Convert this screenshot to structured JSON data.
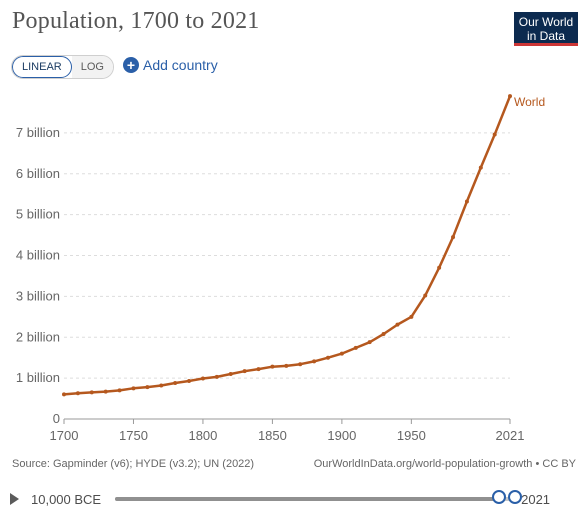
{
  "header": {
    "title": "Population, 1700 to 2021",
    "logo_line1": "Our World",
    "logo_line2": "in Data"
  },
  "controls": {
    "scale_options": [
      "LINEAR",
      "LOG"
    ],
    "active_scale": "LINEAR",
    "add_country_label": "Add country"
  },
  "colors": {
    "series": "#b5581e",
    "accent": "#2a5fa8",
    "logo_bg": "#0c2a4f",
    "logo_underline": "#cc3636"
  },
  "chart_data": {
    "type": "line",
    "title": "Population, 1700 to 2021",
    "xlim": [
      1700,
      2021
    ],
    "ylim": [
      0,
      8000000000
    ],
    "x_ticks": [
      1700,
      1750,
      1800,
      1850,
      1900,
      1950,
      2021
    ],
    "x_tick_labels": [
      "1700",
      "1750",
      "1800",
      "1850",
      "1900",
      "1950",
      "2021"
    ],
    "y_ticks": [
      0,
      1000000000,
      2000000000,
      3000000000,
      4000000000,
      5000000000,
      6000000000,
      7000000000
    ],
    "y_tick_labels": [
      "0",
      "1 billion",
      "2 billion",
      "3 billion",
      "4 billion",
      "5 billion",
      "6 billion",
      "7 billion"
    ],
    "grid": "horizontal dashed",
    "legend": "end-of-line label",
    "series": [
      {
        "name": "World",
        "x": [
          1700,
          1710,
          1720,
          1730,
          1740,
          1750,
          1760,
          1770,
          1780,
          1790,
          1800,
          1810,
          1820,
          1830,
          1840,
          1850,
          1860,
          1870,
          1880,
          1890,
          1900,
          1910,
          1920,
          1930,
          1940,
          1950,
          1960,
          1970,
          1980,
          1990,
          2000,
          2010,
          2021
        ],
        "y": [
          603000000,
          630000000,
          650000000,
          670000000,
          700000000,
          750000000,
          780000000,
          820000000,
          880000000,
          930000000,
          990000000,
          1030000000,
          1100000000,
          1170000000,
          1220000000,
          1280000000,
          1300000000,
          1340000000,
          1410000000,
          1500000000,
          1600000000,
          1740000000,
          1880000000,
          2080000000,
          2310000000,
          2500000000,
          3020000000,
          3700000000,
          4450000000,
          5320000000,
          6150000000,
          6960000000,
          7900000000
        ]
      }
    ]
  },
  "footer": {
    "source": "Source: Gapminder (v6); HYDE (v3.2); UN (2022)",
    "url": "OurWorldInData.org/world-population-growth • CC BY"
  },
  "timeline": {
    "start_label": "10,000 BCE",
    "end_label": "2021",
    "selection_start_year": 1700,
    "selection_end_year": 2021
  }
}
